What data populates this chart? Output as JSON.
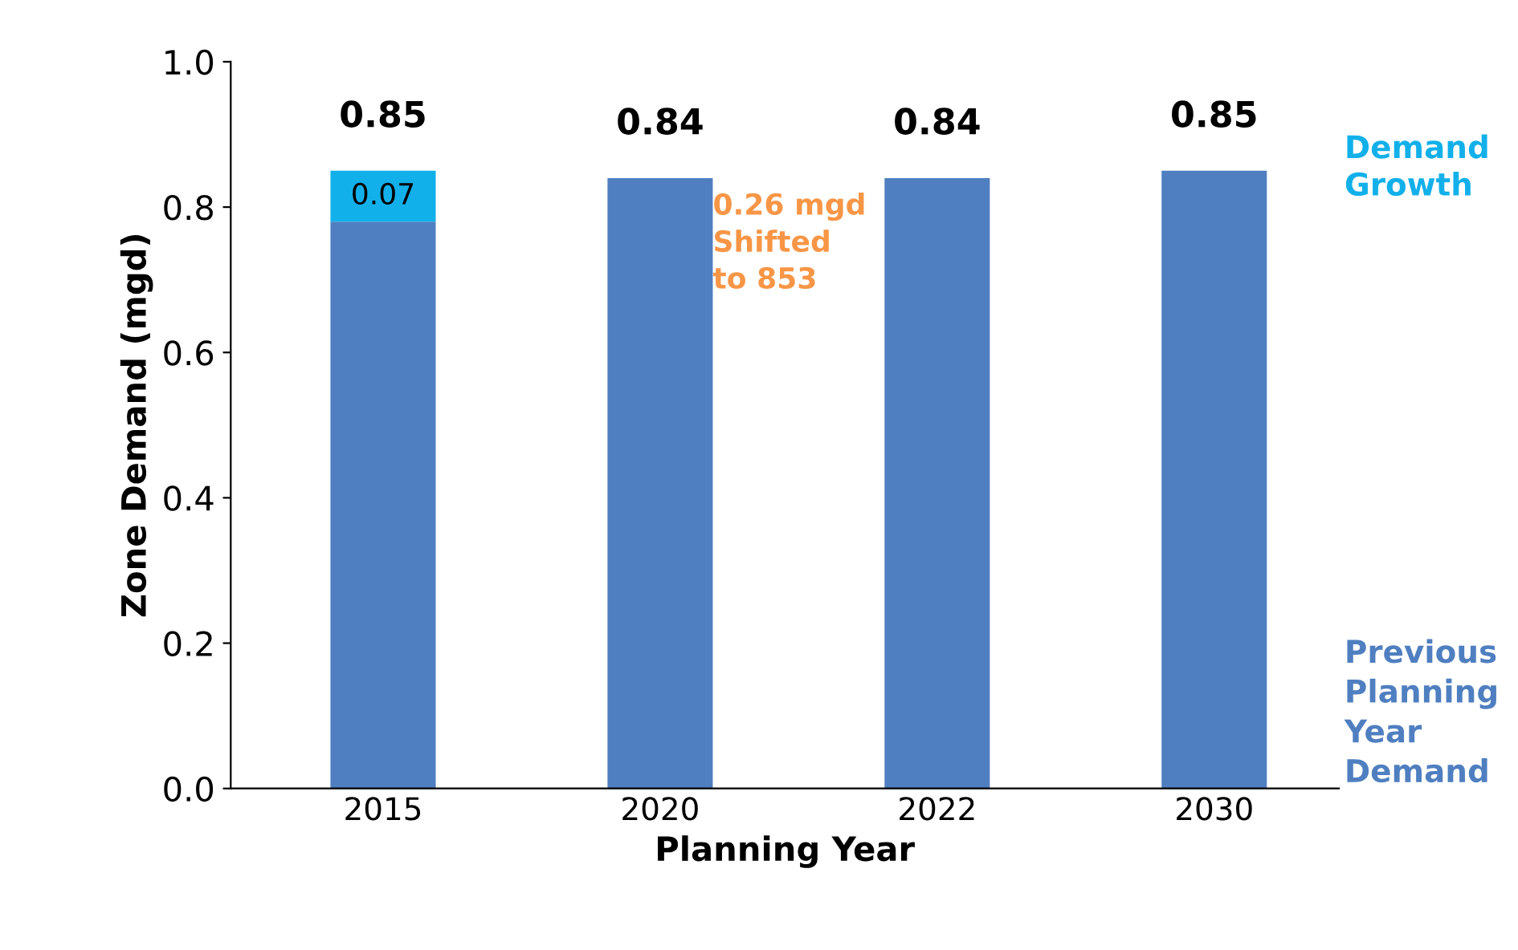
{
  "chart_data": {
    "type": "bar",
    "stacked": true,
    "xlabel": "Planning Year",
    "ylabel": "Zone Demand (mgd)",
    "categories": [
      "2015",
      "2020",
      "2022",
      "2030"
    ],
    "series": [
      {
        "name": "Previous Planning Year Demand",
        "color": "#4f7fc0",
        "values": [
          0.78,
          0.84,
          0.84,
          0.85
        ]
      },
      {
        "name": "Demand Growth",
        "color": "#12b0ea",
        "values": [
          0.07,
          null,
          null,
          null
        ],
        "value_labels": [
          "0.07",
          null,
          null,
          null
        ]
      }
    ],
    "totals": [
      "0.85",
      "0.84",
      "0.84",
      "0.85"
    ],
    "ylim": [
      0,
      1.0
    ],
    "yticks": [
      {
        "value": 0,
        "label": "0.0"
      },
      0.2,
      0.4,
      0.6,
      0.8,
      {
        "value": 1.0,
        "label": "1.0"
      }
    ],
    "grid": false,
    "legend": false,
    "annotations": [
      "0.26 mgd\nShifted\nto 853"
    ]
  }
}
